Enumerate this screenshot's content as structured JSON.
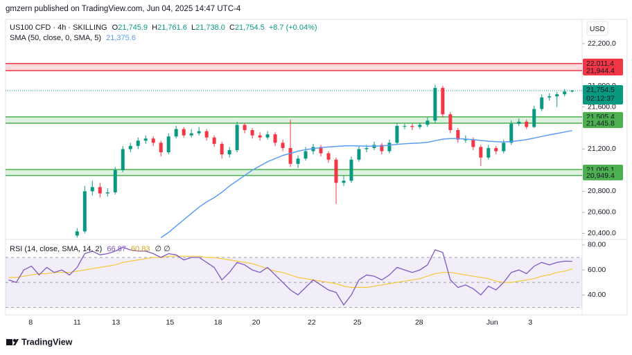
{
  "header": {
    "publisher": "gmzern published on TradingView.com, Jun 04, 2025 14:47 UTC-4"
  },
  "chart_data": [
    {
      "type": "candlestick",
      "symbol": "US100 CFD · 4h · SKILLING",
      "legend_values": [
        {
          "label": "O",
          "value": "21,745.9"
        },
        {
          "label": "H",
          "value": "21,761.6"
        },
        {
          "label": "L",
          "value": "21,738.0"
        },
        {
          "label": "C",
          "value": "21,754.5"
        }
      ],
      "change": "+8.7 (+0.04%)",
      "currency": "USD",
      "up_color": "#089981",
      "down_color": "#f23645",
      "xlim": [
        -0.4,
        75.3
      ],
      "ylim": [
        20350,
        22430
      ],
      "yticks": [
        {
          "value": 22200,
          "label": "22,200.0"
        },
        {
          "value": 21800,
          "label": "21,800.0"
        },
        {
          "value": 21600,
          "label": "21,600.0"
        },
        {
          "value": 21200,
          "label": "21,200.0"
        },
        {
          "value": 20800,
          "label": "20,800.0"
        },
        {
          "value": 20600,
          "label": "20,600.0"
        },
        {
          "value": 20400,
          "label": "20,400.0"
        }
      ],
      "xticks": [
        {
          "value": 2.9,
          "label": "8"
        },
        {
          "value": 9,
          "label": "11"
        },
        {
          "value": 14.1,
          "label": "13"
        },
        {
          "value": 21.2,
          "label": "15"
        },
        {
          "value": 27.5,
          "label": "18"
        },
        {
          "value": 32.5,
          "label": "20"
        },
        {
          "value": 39.8,
          "label": "22"
        },
        {
          "value": 45.8,
          "label": "25"
        },
        {
          "value": 53.9,
          "label": "28"
        },
        {
          "value": 63.5,
          "label": "Jun"
        },
        {
          "value": 68.5,
          "label": "3"
        }
      ],
      "ohlc": [
        null,
        null,
        null,
        null,
        null,
        null,
        null,
        null,
        null,
        [
          20380,
          20450,
          20360,
          20420
        ],
        [
          20420,
          20850,
          20400,
          20800
        ],
        [
          20800,
          20900,
          20760,
          20840
        ],
        [
          20840,
          20880,
          20740,
          20780
        ],
        [
          20780,
          20830,
          20750,
          20790
        ],
        [
          20790,
          21030,
          20770,
          21000
        ],
        [
          21000,
          21230,
          20980,
          21200
        ],
        [
          21200,
          21260,
          21170,
          21230
        ],
        [
          21230,
          21310,
          21200,
          21280
        ],
        [
          21280,
          21330,
          21250,
          21300
        ],
        [
          21300,
          21320,
          21230,
          21260
        ],
        [
          21260,
          21280,
          21130,
          21170
        ],
        [
          21170,
          21350,
          21150,
          21320
        ],
        [
          21320,
          21420,
          21300,
          21390
        ],
        [
          21390,
          21410,
          21310,
          21330
        ],
        [
          21330,
          21390,
          21310,
          21350
        ],
        [
          21350,
          21410,
          21330,
          21370
        ],
        [
          21370,
          21390,
          21280,
          21310
        ],
        [
          21310,
          21330,
          21220,
          21250
        ],
        [
          21250,
          21270,
          21110,
          21150
        ],
        [
          21150,
          21220,
          21120,
          21190
        ],
        [
          21190,
          21460,
          21170,
          21430
        ],
        [
          21430,
          21450,
          21350,
          21380
        ],
        [
          21380,
          21400,
          21300,
          21330
        ],
        [
          21330,
          21360,
          21280,
          21310
        ],
        [
          21310,
          21370,
          21290,
          21340
        ],
        [
          21340,
          21360,
          21230,
          21260
        ],
        [
          21260,
          21290,
          21180,
          21210
        ],
        [
          21210,
          21480,
          21030,
          21060
        ],
        [
          21060,
          21140,
          21020,
          21110
        ],
        [
          21110,
          21220,
          21090,
          21180
        ],
        [
          21180,
          21250,
          21150,
          21220
        ],
        [
          21220,
          21240,
          21130,
          21160
        ],
        [
          21160,
          21180,
          21070,
          21100
        ],
        [
          21100,
          21120,
          20680,
          20880
        ],
        [
          20880,
          20950,
          20850,
          20900
        ],
        [
          20900,
          21130,
          20880,
          21100
        ],
        [
          21100,
          21230,
          21080,
          21200
        ],
        [
          21200,
          21240,
          21170,
          21210
        ],
        [
          21210,
          21270,
          21190,
          21240
        ],
        [
          21240,
          21260,
          21150,
          21180
        ],
        [
          21180,
          21290,
          21160,
          21260
        ],
        [
          21260,
          21450,
          21240,
          21420
        ],
        [
          21420,
          21440,
          21390,
          21420
        ],
        [
          21420,
          21440,
          21380,
          21410
        ],
        [
          21410,
          21450,
          21390,
          21430
        ],
        [
          21430,
          21500,
          21410,
          21470
        ],
        [
          21470,
          21810,
          21450,
          21780
        ],
        [
          21780,
          21800,
          21500,
          21530
        ],
        [
          21530,
          21550,
          21350,
          21380
        ],
        [
          21380,
          21400,
          21260,
          21290
        ],
        [
          21290,
          21330,
          21260,
          21290
        ],
        [
          21290,
          21310,
          21190,
          21220
        ],
        [
          21220,
          21240,
          21040,
          21120
        ],
        [
          21120,
          21240,
          21100,
          21210
        ],
        [
          21210,
          21230,
          21150,
          21180
        ],
        [
          21180,
          21290,
          21160,
          21260
        ],
        [
          21260,
          21470,
          21240,
          21440
        ],
        [
          21440,
          21490,
          21420,
          21460
        ],
        [
          21460,
          21480,
          21390,
          21410
        ],
        [
          21410,
          21610,
          21400,
          21580
        ],
        [
          21580,
          21720,
          21560,
          21690
        ],
        [
          21690,
          21730,
          21660,
          21700
        ],
        [
          21700,
          21740,
          21600,
          21720
        ],
        [
          21720,
          21770,
          21700,
          21745.9
        ],
        [
          21745.9,
          21761.6,
          21738.0,
          21754.5
        ]
      ],
      "overlays": [
        {
          "name": "SMA (50, close, 0, SMA, 5)",
          "last_label": "21,375.6",
          "color": "#5b9cf6",
          "values": [
            null,
            null,
            null,
            null,
            null,
            null,
            null,
            null,
            null,
            null,
            null,
            null,
            null,
            null,
            null,
            null,
            null,
            null,
            null,
            null,
            20360,
            20410,
            20470,
            20530,
            20590,
            20650,
            20700,
            20740,
            20790,
            20850,
            20900,
            20950,
            21000,
            21040,
            21080,
            21110,
            21140,
            21160,
            21180,
            21195,
            21205,
            21215,
            21220,
            21225,
            21230,
            21232,
            21230,
            21228,
            21228,
            21230,
            21238,
            21245,
            21250,
            21255,
            21258,
            21265,
            21280,
            21295,
            21300,
            21300,
            21295,
            21290,
            21282,
            21275,
            21270,
            21268,
            21272,
            21280,
            21290,
            21305,
            21320,
            21335,
            21348,
            21362,
            21375.6
          ]
        }
      ],
      "zones": [
        {
          "color": "#f23645",
          "fill": "rgba(242,54,69,0.18)",
          "edges": [
            {
              "value": 22011.4,
              "label": "22,011.4"
            },
            {
              "value": 21944.4,
              "label": "21,944.4"
            }
          ]
        },
        {
          "color": "#4caf50",
          "fill": "rgba(76,175,80,0.18)",
          "edges": [
            {
              "value": 21505.4,
              "label": "21,505.4"
            },
            {
              "value": 21445.8,
              "label": "21,445.8"
            }
          ]
        },
        {
          "color": "#4caf50",
          "fill": "rgba(76,175,80,0.18)",
          "edges": [
            {
              "value": 21006.1,
              "label": "21,006.1"
            },
            {
              "value": 20949.4,
              "label": "20,949.4"
            }
          ]
        }
      ],
      "last_price": {
        "value": 21754.5,
        "label": "21,754.5",
        "countdown": "02:12:37",
        "color": "#089981"
      }
    },
    {
      "type": "line",
      "title": "RSI (14, close, SMA, 14, 2)",
      "extra_label": "∅ ∅",
      "xlim": [
        -0.4,
        75.3
      ],
      "ylim": [
        25.2,
        83.8
      ],
      "yticks": [
        {
          "value": 80,
          "label": "80.00"
        },
        {
          "value": 60,
          "label": "60.00"
        },
        {
          "value": 40,
          "label": "40.00"
        }
      ],
      "levels": [
        70,
        50,
        30
      ],
      "band_fill": "rgba(126,87,194,0.1)",
      "series": [
        {
          "color": "#7e57c2",
          "last_label": "66.87",
          "values": [
            52,
            50,
            60,
            63,
            56,
            62,
            58,
            60,
            56,
            62,
            73,
            75,
            72,
            73,
            75,
            78,
            76,
            75,
            75,
            73,
            70,
            73,
            72,
            68,
            70,
            70,
            66,
            62,
            52,
            58,
            66,
            64,
            60,
            58,
            62,
            56,
            50,
            44,
            40,
            46,
            52,
            48,
            44,
            42,
            32,
            40,
            52,
            56,
            55,
            52,
            56,
            62,
            60,
            58,
            60,
            64,
            76,
            74,
            52,
            46,
            48,
            45,
            40,
            47,
            44,
            50,
            58,
            60,
            57,
            63,
            66,
            64,
            66,
            67,
            66.87
          ]
        },
        {
          "color": "#f5c83a",
          "last_label": "60.83",
          "values": [
            54,
            54,
            55,
            56,
            57,
            57,
            58,
            58,
            58,
            59,
            60,
            61,
            62,
            63,
            64,
            66,
            67,
            68,
            69,
            70,
            70,
            71,
            71,
            71,
            71,
            71,
            70,
            70,
            69,
            68,
            67,
            66,
            65,
            63,
            61,
            59,
            58,
            56,
            54,
            53,
            52,
            51,
            50,
            49,
            47,
            46,
            46,
            46,
            47,
            48,
            49,
            50,
            51,
            52,
            53,
            55,
            57,
            58,
            58,
            57,
            56,
            55,
            54,
            53,
            51,
            50,
            50,
            51,
            52,
            53,
            55,
            56,
            58,
            59,
            60.83
          ]
        }
      ]
    }
  ],
  "footer": {
    "brand": "TradingView"
  }
}
